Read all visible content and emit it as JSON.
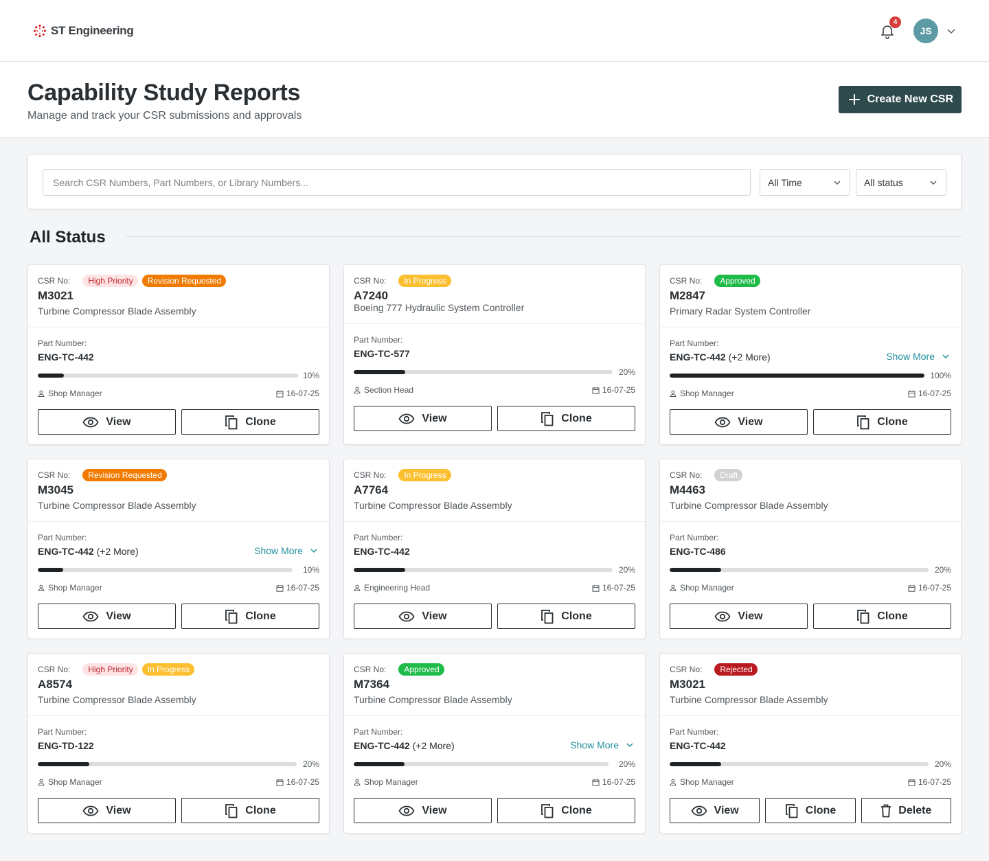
{
  "brand": {
    "name": "ST Engineering"
  },
  "topbar": {
    "notification_count": "4",
    "user_initials": "JS"
  },
  "header": {
    "title": "Capability Study Reports",
    "subtitle": "Manage and track your CSR submissions and approvals",
    "create_label": "Create New CSR"
  },
  "filters": {
    "search_placeholder": "Search CSR Numbers, Part Numbers, or Library Numbers...",
    "time": "All Time",
    "status": "All status"
  },
  "section": {
    "title": "All Status"
  },
  "labels": {
    "csr_no": "CSR No:",
    "part_number": "Part Number:",
    "show_more": "Show More",
    "view": "View",
    "clone": "Clone",
    "delete": "Delete"
  },
  "colors": {
    "accent": "#2e4a4d",
    "link": "#1f8f9a",
    "revision": "#f07b00",
    "in_progress": "#fbbf2f",
    "approved": "#1fbb49",
    "rejected": "#b81a1f",
    "high_priority_bg": "#fde3e3"
  },
  "cards": [
    {
      "badges": [
        {
          "text": "High Priority",
          "type": "high"
        },
        {
          "text": "Revision Requested",
          "type": "revision"
        }
      ],
      "csr": "M3021",
      "desc": "Turbine Compressor Blade Assembly",
      "part": "ENG-TC-442",
      "part_more": "",
      "progress": 10,
      "progress_label": "10%",
      "role": "Shop Manager",
      "date": "16-07-25"
    },
    {
      "badges": [
        {
          "text": "In Progress",
          "type": "progress"
        }
      ],
      "csr": "A7240",
      "desc": "Boeing 777 Hydraulic System Controller",
      "part": "ENG-TC-577",
      "part_more": "",
      "progress": 20,
      "progress_label": "20%",
      "role": "Section Head",
      "date": "16-07-25"
    },
    {
      "badges": [
        {
          "text": "Approved",
          "type": "approved"
        }
      ],
      "csr": "M2847",
      "desc": "Primary Radar System Controller",
      "part": "ENG-TC-442",
      "part_more": "(+2 More)",
      "progress": 100,
      "progress_label": "100%",
      "role": "Shop Manager",
      "date": "16-07-25"
    },
    {
      "badges": [
        {
          "text": "Revision Requested",
          "type": "revision"
        }
      ],
      "csr": "M3045",
      "desc": "Turbine Compressor Blade Assembly",
      "part": "ENG-TC-442",
      "part_more": "(+2 More)",
      "progress": 10,
      "progress_label": "10%",
      "role": "Shop Manager",
      "date": "16-07-25"
    },
    {
      "badges": [
        {
          "text": "In Progress",
          "type": "progress"
        }
      ],
      "csr": "A7764",
      "desc": "Turbine Compressor Blade Assembly",
      "part": "ENG-TC-442",
      "part_more": "",
      "progress": 20,
      "progress_label": "20%",
      "role": "Engineering Head",
      "date": "16-07-25"
    },
    {
      "badges": [
        {
          "text": "Draft",
          "type": "draft"
        }
      ],
      "csr": "M4463",
      "desc": "Turbine Compressor Blade Assembly",
      "part": "ENG-TC-486",
      "part_more": "",
      "progress": 20,
      "progress_label": "20%",
      "role": "Shop Manager",
      "date": "16-07-25"
    },
    {
      "badges": [
        {
          "text": "High Priority",
          "type": "high"
        },
        {
          "text": "In Progress",
          "type": "progress"
        }
      ],
      "csr": "A8574",
      "desc": "Turbine Compressor Blade Assembly",
      "part": "ENG-TD-122",
      "part_more": "",
      "progress": 20,
      "progress_label": "20%",
      "role": "Shop Manager",
      "date": "16-07-25"
    },
    {
      "badges": [
        {
          "text": "Approved",
          "type": "approved"
        }
      ],
      "csr": "M7364",
      "desc": "Turbine Compressor Blade Assembly",
      "part": "ENG-TC-442",
      "part_more": "(+2 More)",
      "progress": 20,
      "progress_label": "20%",
      "role": "Shop Manager",
      "date": "16-07-25"
    },
    {
      "badges": [
        {
          "text": "Rejected",
          "type": "rejected"
        }
      ],
      "csr": "M3021",
      "desc": "Turbine Compressor Blade Assembly",
      "part": "ENG-TC-442",
      "part_more": "",
      "progress": 20,
      "progress_label": "20%",
      "role": "Shop Manager",
      "date": "16-07-25",
      "deletable": true
    }
  ]
}
